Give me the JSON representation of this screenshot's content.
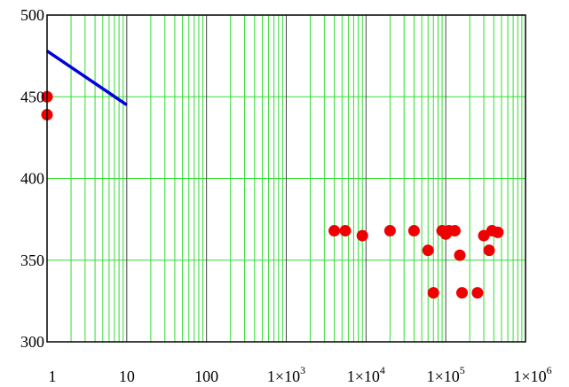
{
  "chart_data": {
    "type": "scatter",
    "title": "",
    "xlabel": "",
    "ylabel": "",
    "x_scale": "log",
    "xlim": [
      1,
      1000000
    ],
    "ylim": [
      300,
      500
    ],
    "y_ticks": [
      300,
      350,
      400,
      450,
      500
    ],
    "y_tick_labels": [
      "300",
      "350",
      "400",
      "450",
      "500"
    ],
    "x_ticks": [
      1,
      10,
      100,
      1000,
      10000,
      100000,
      1000000
    ],
    "x_tick_labels": [
      {
        "base": "1",
        "exp": ""
      },
      {
        "base": "10",
        "exp": ""
      },
      {
        "base": "100",
        "exp": ""
      },
      {
        "base": "1×10",
        "exp": "3"
      },
      {
        "base": "1×10",
        "exp": "4"
      },
      {
        "base": "1×10",
        "exp": "5"
      },
      {
        "base": "1×10",
        "exp": "6"
      }
    ],
    "grid": true,
    "colors": {
      "minor_grid": "#33dd33",
      "major_grid": "#444444",
      "line_series": "#0000dd",
      "point_series": "#ee0000",
      "axes": "#000000"
    },
    "series": [
      {
        "kind": "line",
        "x": [
          1,
          10
        ],
        "y": [
          478,
          445
        ]
      },
      {
        "kind": "points",
        "x": [
          1,
          1,
          4000,
          5500,
          9000,
          20000,
          40000,
          60000,
          70000,
          90000,
          100000,
          110000,
          130000,
          150000,
          160000,
          250000,
          300000,
          350000,
          380000,
          450000
        ],
        "y": [
          450,
          439,
          368,
          368,
          365,
          368,
          368,
          356,
          330,
          368,
          366,
          368,
          368,
          353,
          330,
          330,
          365,
          356,
          368,
          367
        ]
      }
    ]
  }
}
